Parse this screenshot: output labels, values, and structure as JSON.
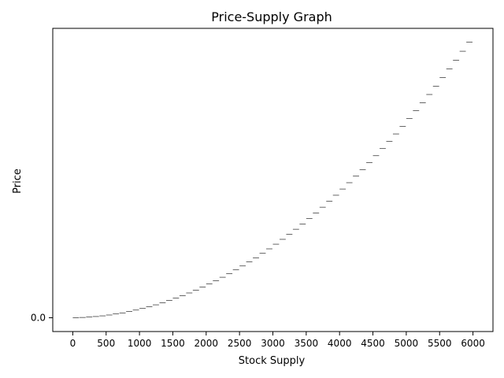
{
  "chart_data": {
    "type": "line",
    "title": "Price-Supply Graph",
    "xlabel": "Stock Supply",
    "ylabel": "Price",
    "xlim": [
      -300,
      6300
    ],
    "ylim": [
      -0.05,
      1.05
    ],
    "xticks": [
      0,
      500,
      1000,
      1500,
      2000,
      2500,
      3000,
      3500,
      4000,
      4500,
      5000,
      5500,
      6000
    ],
    "xtick_labels": [
      "0",
      "500",
      "1000",
      "1500",
      "2000",
      "2500",
      "3000",
      "3500",
      "4000",
      "4500",
      "5000",
      "5500",
      "6000"
    ],
    "yticks": [
      0.0
    ],
    "ytick_labels": [
      "0.0"
    ],
    "grid": false,
    "legend": "none",
    "line_color": "#000000",
    "series": [
      {
        "style": "step",
        "step_width": 100,
        "x_start": 0,
        "x_end": 6000,
        "y_at_x_end": 1.0,
        "shape": "quadratic"
      }
    ]
  }
}
